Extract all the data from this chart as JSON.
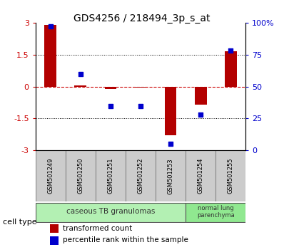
{
  "title": "GDS4256 / 218494_3p_s_at",
  "samples": [
    "GSM501249",
    "GSM501250",
    "GSM501251",
    "GSM501252",
    "GSM501253",
    "GSM501254",
    "GSM501255"
  ],
  "red_bars": [
    2.9,
    0.05,
    -0.1,
    -0.05,
    -2.3,
    -0.85,
    1.65
  ],
  "blue_dots": [
    97,
    60,
    35,
    35,
    5,
    28,
    78
  ],
  "ylim_left": [
    -3,
    3
  ],
  "ylim_right": [
    0,
    100
  ],
  "yticks_left": [
    -3,
    -1.5,
    0,
    1.5,
    3
  ],
  "yticks_right": [
    0,
    25,
    50,
    75,
    100
  ],
  "ytick_labels_right": [
    "0",
    "25",
    "50",
    "75",
    "100%"
  ],
  "cell_types": [
    {
      "label": "caseous TB granulomas",
      "samples_range": [
        0,
        4
      ],
      "color": "#b3f0b3"
    },
    {
      "label": "normal lung\nparenchyma",
      "samples_range": [
        5,
        6
      ],
      "color": "#90e890"
    }
  ],
  "cell_type_label": "cell type",
  "legend_red_label": "transformed count",
  "legend_blue_label": "percentile rank within the sample",
  "bar_color": "#b30000",
  "dot_color": "#0000cc",
  "hline_color": "#cc0000",
  "bg_color": "#ffffff",
  "xtick_box_color": "#cccccc",
  "tick_label_color_left": "#cc0000",
  "tick_label_color_right": "#0000cc",
  "hline_dotted_color": "#000000"
}
